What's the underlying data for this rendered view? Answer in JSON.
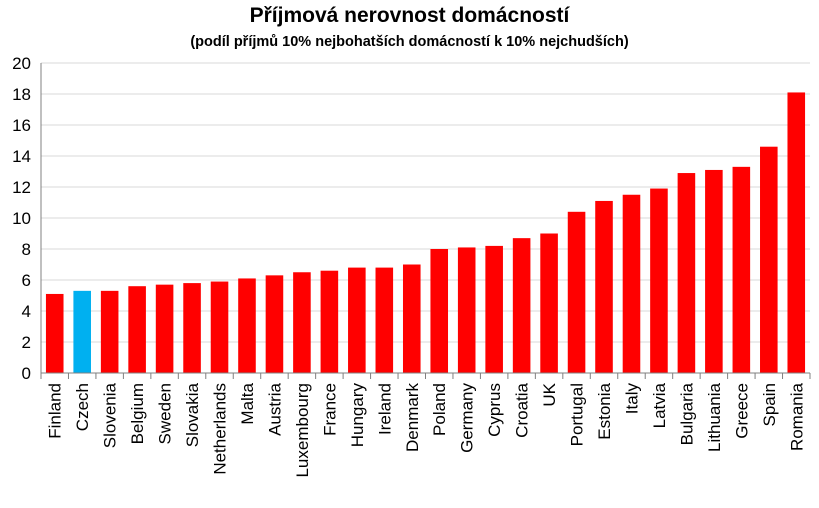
{
  "chart_data": {
    "type": "bar",
    "title": "Příjmová nerovnost domácností",
    "subtitle": "(podíl příjmů 10% nejbohatších domácností k 10% nejchudších)",
    "xlabel": "",
    "ylabel": "",
    "ylim": [
      0,
      20
    ],
    "yticks": [
      0,
      2,
      4,
      6,
      8,
      10,
      12,
      14,
      16,
      18,
      20
    ],
    "grid": true,
    "legend": "none",
    "categories": [
      "Finland",
      "Czech",
      "Slovenia",
      "Belgium",
      "Sweden",
      "Slovakia",
      "Netherlands",
      "Malta",
      "Austria",
      "Luxembourg",
      "France",
      "Hungary",
      "Ireland",
      "Denmark",
      "Poland",
      "Germany",
      "Cyprus",
      "Croatia",
      "UK",
      "Portugal",
      "Estonia",
      "Italy",
      "Latvia",
      "Bulgaria",
      "Lithuania",
      "Greece",
      "Spain",
      "Romania"
    ],
    "values": [
      5.1,
      5.3,
      5.3,
      5.6,
      5.7,
      5.8,
      5.9,
      6.1,
      6.3,
      6.5,
      6.6,
      6.8,
      6.8,
      7.0,
      8.0,
      8.1,
      8.2,
      8.7,
      9.0,
      10.4,
      11.1,
      11.5,
      11.9,
      12.9,
      13.1,
      13.3,
      14.6,
      18.1
    ],
    "highlight_category": "Czech",
    "colors": {
      "bar": "#ff0000",
      "highlight": "#00b0f0",
      "grid": "#d9d9d9",
      "axis": "#808080"
    }
  }
}
